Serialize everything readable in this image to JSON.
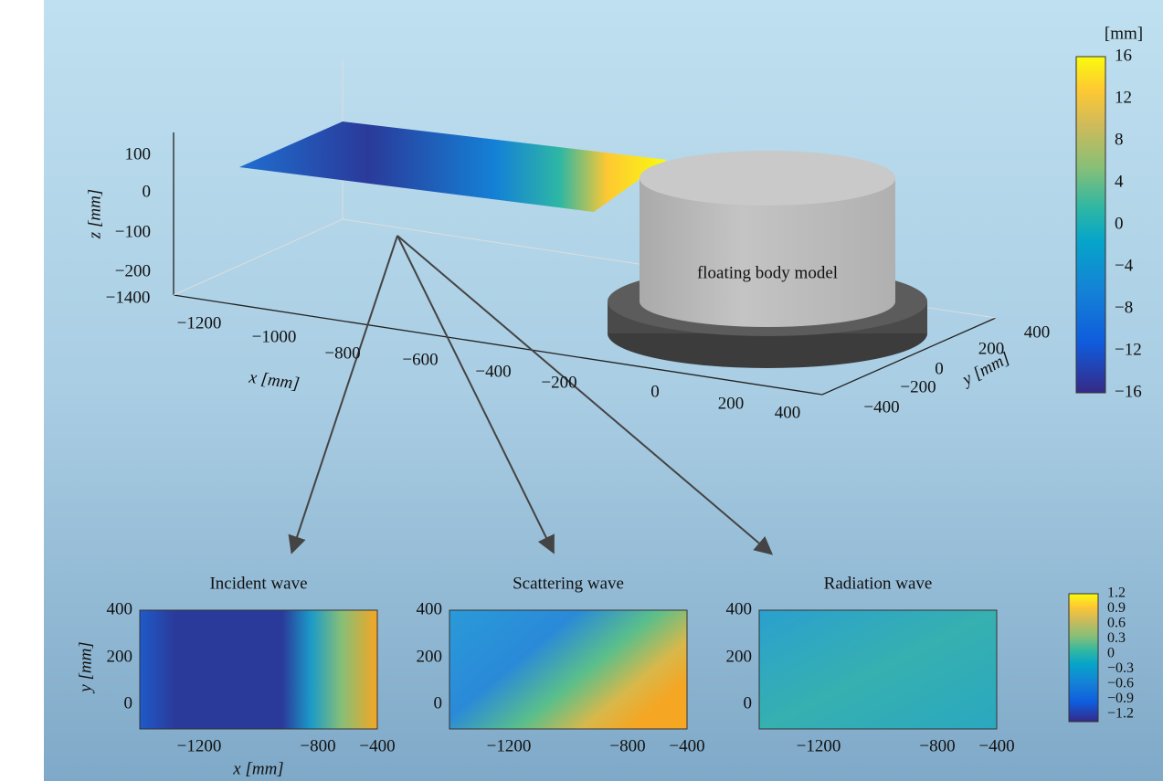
{
  "surface_plot": {
    "z_label": "z [mm]",
    "x_label": "x [mm]",
    "y_label": "y [mm]",
    "z_ticks": [
      "100",
      "0",
      "−100",
      "−200"
    ],
    "x_ticks": [
      "−1400",
      "−1200",
      "−1000",
      "−800",
      "−600",
      "−400",
      "−200",
      "0",
      "200",
      "400"
    ],
    "y_ticks": [
      "−400",
      "−200",
      "0",
      "200",
      "400"
    ],
    "body_label": "floating body model"
  },
  "colorbar_top": {
    "unit": "[mm]",
    "ticks": [
      "16",
      "12",
      "8",
      "4",
      "0",
      "−4",
      "−8",
      "−12",
      "−16"
    ]
  },
  "panels": [
    {
      "title": "Incident wave"
    },
    {
      "title": "Scattering wave"
    },
    {
      "title": "Radiation wave"
    }
  ],
  "panel_axes": {
    "x_label": "x [mm]",
    "y_label": "y [mm]",
    "x_ticks": [
      "−1200",
      "−800",
      "−400"
    ],
    "y_ticks": [
      "400",
      "200",
      "0"
    ]
  },
  "colorbar_bottom": {
    "ticks": [
      "1.2",
      "0.9",
      "0.6",
      "0.3",
      "0",
      "−0.3",
      "−0.6",
      "−0.9",
      "−1.2"
    ]
  }
}
